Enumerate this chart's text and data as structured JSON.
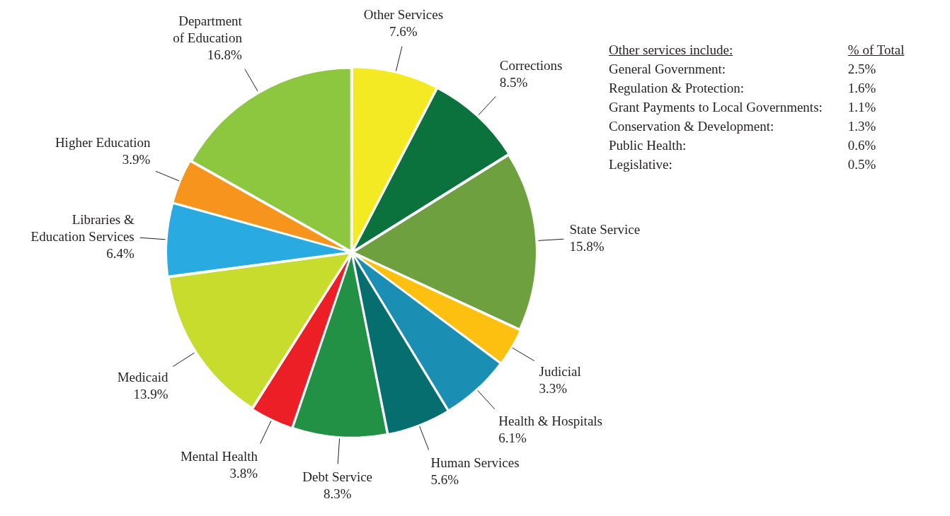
{
  "chart_data": {
    "type": "pie",
    "categories": [
      "Other Services",
      "Corrections",
      "State Service",
      "Judicial",
      "Health & Hospitals",
      "Human Services",
      "Debt Service",
      "Mental Health",
      "Medicaid",
      "Libraries & Education Services",
      "Higher Education",
      "Department of Education"
    ],
    "values": [
      7.6,
      8.5,
      15.8,
      3.3,
      6.1,
      5.6,
      8.3,
      3.8,
      13.9,
      6.4,
      3.9,
      16.8
    ],
    "value_labels": [
      "7.6%",
      "8.5%",
      "15.8%",
      "3.3%",
      "6.1%",
      "5.6%",
      "8.3%",
      "3.8%",
      "13.9%",
      "6.4%",
      "3.9%",
      "16.8%"
    ],
    "colors": [
      "#f4ea23",
      "#0b713d",
      "#6fa040",
      "#fdc010",
      "#1a8fb3",
      "#066e6e",
      "#239145",
      "#ec1f27",
      "#c8dc2d",
      "#29abe2",
      "#f7941d",
      "#8dc63f"
    ],
    "legend": false,
    "annotations": [
      "Other services include:",
      "% of Total",
      "General Government:",
      "2.5%",
      "Regulation & Protection:",
      "1.6%",
      "Grant Payments to Local Governments:",
      "1.1%",
      "Conservation & Development:",
      "1.3%",
      "Public Health:",
      "0.6%",
      "Legislative:",
      "0.5%"
    ]
  }
}
